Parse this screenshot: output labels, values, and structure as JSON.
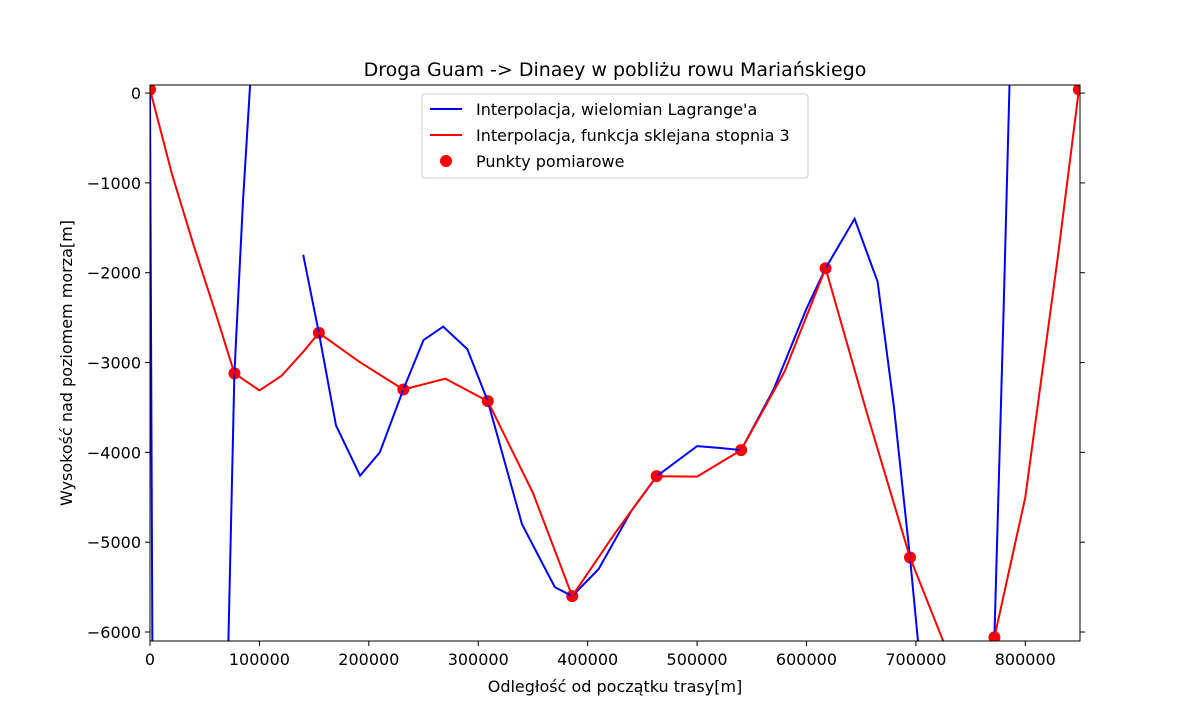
{
  "chart_data": {
    "type": "line",
    "title": "Droga  Guam -> Dinaey  w pobliżu rowu Mariańskiego",
    "xlabel": "Odległość od początku trasy[m]",
    "ylabel": "Wysokość nad poziomem morza[m]",
    "xlim": [
      0,
      850000
    ],
    "ylim": [
      -6100,
      90
    ],
    "xticks": [
      0,
      100000,
      200000,
      300000,
      400000,
      500000,
      600000,
      700000,
      800000
    ],
    "yticks": [
      0,
      {
        "value": -1000,
        "label": "−1000"
      },
      {
        "value": -2000,
        "label": "−2000"
      },
      {
        "value": -3000,
        "label": "−3000"
      },
      {
        "value": -4000,
        "label": "−4000"
      },
      {
        "value": -5000,
        "label": "−5000"
      },
      {
        "value": -6000,
        "label": "−6000"
      }
    ],
    "legend": "upper center",
    "series": [
      {
        "name": "Interpolacja, wielomian Lagrange'a",
        "color": "#0000ff",
        "x": [
          0,
          2500,
          66000,
          70000,
          77180,
          85000,
          92000,
          124000,
          140000,
          154360,
          170000,
          192000,
          210000,
          231540,
          250000,
          268000,
          290000,
          308720,
          340000,
          370000,
          385900,
          410000,
          440000,
          463080,
          500000,
          520000,
          540260,
          570000,
          600000,
          617440,
          644000,
          665000,
          680000,
          694620,
          705000,
          770000,
          771800,
          780000,
          786000
        ],
        "values": [
          40,
          -7000,
          null,
          -7000,
          -3120,
          -1200,
          200,
          null,
          -1800,
          -2670,
          -3700,
          -4260,
          -4000,
          -3300,
          -2750,
          -2600,
          -2850,
          -3430,
          -4800,
          -5500,
          -5600,
          -5300,
          -4650,
          -4265,
          -3930,
          -3950,
          -3975,
          -3300,
          -2400,
          -1950,
          -1400,
          -2100,
          -3500,
          -5170,
          -6500,
          null,
          -6060,
          -2500,
          300
        ]
      },
      {
        "name": "Interpolacja, funkcja sklejana stopnia 3",
        "color": "#ff0000",
        "x": [
          0,
          20000,
          40000,
          60000,
          77180,
          100000,
          120000,
          140000,
          154360,
          190000,
          231540,
          270000,
          308720,
          350000,
          385900,
          425000,
          463080,
          500000,
          540260,
          580000,
          617440,
          655000,
          694620,
          725000,
          740000,
          771800,
          800000,
          830000,
          848980
        ],
        "values": [
          40,
          -900,
          -1700,
          -2450,
          -3120,
          -3310,
          -3150,
          -2880,
          -2670,
          -2980,
          -3300,
          -3180,
          -3430,
          -4450,
          -5600,
          -4900,
          -4265,
          -4270,
          -3975,
          -3100,
          -1950,
          -3550,
          -5170,
          -6100,
          -6500,
          -6060,
          -4500,
          -1800,
          40
        ]
      },
      {
        "name": "Punkty pomiarowe",
        "color": "#ff0000",
        "kind": "scatter",
        "x": [
          0,
          77180,
          154360,
          231540,
          308720,
          385900,
          463080,
          540260,
          617440,
          694620,
          771800,
          848980
        ],
        "values": [
          40,
          -3120,
          -2670,
          -3300,
          -3430,
          -5600,
          -4265,
          -3975,
          -1950,
          -5170,
          -6060,
          40
        ]
      }
    ]
  }
}
